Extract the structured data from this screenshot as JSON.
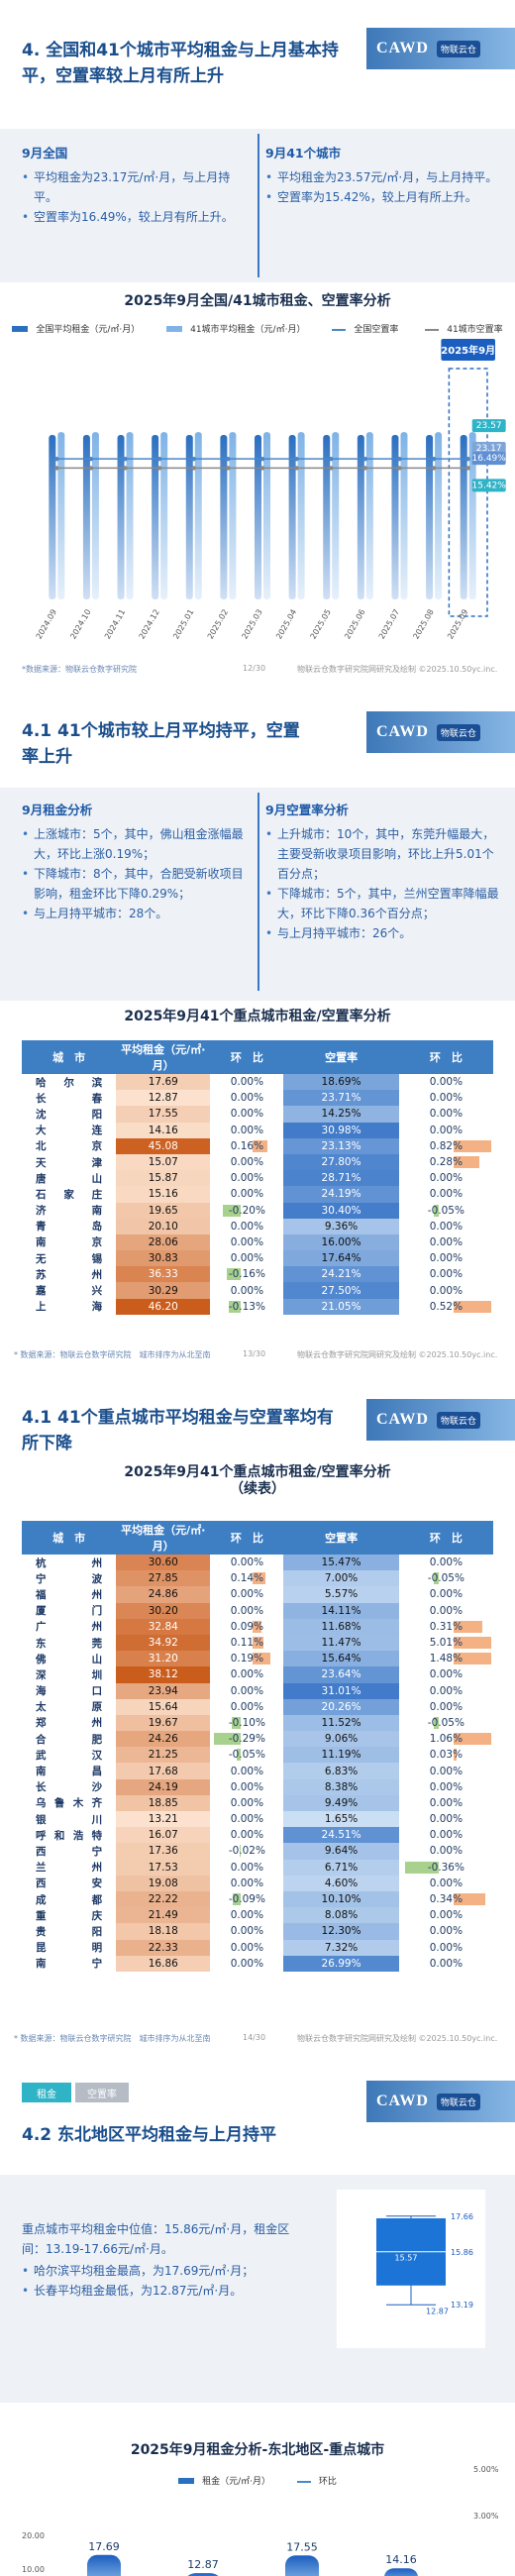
{
  "logo": {
    "text": "CAWD",
    "tag": "物联云仓"
  },
  "s1": {
    "title_l1": "4. 全国和41个城市平均租金与上月基本持",
    "title_l2": "平，空置率较上月有所上升",
    "left": {
      "h": "9月全国",
      "b1": "平均租金为23.17元/㎡·月，与上月持平。",
      "b2": "空置率为16.49%，较上月有所上升。"
    },
    "right": {
      "h": "9月41个城市",
      "b1": "平均租金为23.57元/㎡·月，与上月持平。",
      "b2": "空置率为15.42%，较上月有所上升。"
    },
    "chart_title": "2025年9月全国/41城市租金、空置率分析",
    "legend": [
      "全国平均租金（元/㎡·月）",
      "41城市平均租金（元/㎡·月）",
      "全国空置率",
      "41城市空置率"
    ],
    "callout": "2025年9月",
    "source": "*数据来源：物联云仓数字研究院",
    "page": "12/30",
    "copyright": "物联云仓数字研究院网研究及绘制 ©2025.10.50yc.inc."
  },
  "chart_data": [
    {
      "type": "bar",
      "title": "2025年9月全国/41城市租金、空置率分析",
      "categories": [
        "2024.09",
        "2024.10",
        "2024.11",
        "2024.12",
        "2025.01",
        "2025.02",
        "2025.03",
        "2025.04",
        "2025.05",
        "2025.06",
        "2025.07",
        "2025.08",
        "2025.09"
      ],
      "series": [
        {
          "name": "全国平均租金（元/㎡·月）",
          "values": [
            23.17,
            23.17,
            23.17,
            23.17,
            23.17,
            23.17,
            23.17,
            23.17,
            23.17,
            23.17,
            23.17,
            23.17,
            23.17
          ]
        },
        {
          "name": "41城市平均租金（元/㎡·月）",
          "values": [
            23.57,
            23.57,
            23.57,
            23.57,
            23.57,
            23.57,
            23.57,
            23.57,
            23.57,
            23.57,
            23.57,
            23.57,
            23.57
          ]
        },
        {
          "name": "全国空置率",
          "values": [
            16.49,
            16.49,
            16.49,
            16.49,
            16.49,
            16.49,
            16.49,
            16.49,
            16.49,
            16.49,
            16.49,
            16.49,
            16.49
          ]
        },
        {
          "name": "41城市空置率",
          "values": [
            15.42,
            15.42,
            15.42,
            15.42,
            15.42,
            15.42,
            15.42,
            15.42,
            15.42,
            15.42,
            15.42,
            15.42,
            15.42
          ]
        }
      ],
      "labels_last": [
        "23.57",
        "23.17",
        "16.49%",
        "15.42%"
      ]
    },
    {
      "type": "table",
      "title": "2025年9月41个重点城市租金/空置率分析",
      "columns": [
        "城　市",
        "平均租金（元/㎡·月）",
        "环　比",
        "空置率",
        "环　比"
      ],
      "rows": [
        [
          "哈尔滨",
          17.69,
          "0.00%",
          "18.69%",
          "0.00%"
        ],
        [
          "长春",
          12.87,
          "0.00%",
          "23.71%",
          "0.00%"
        ],
        [
          "沈阳",
          17.55,
          "0.00%",
          "14.25%",
          "0.00%"
        ],
        [
          "大连",
          14.16,
          "0.00%",
          "30.98%",
          "0.00%"
        ],
        [
          "北京",
          45.08,
          "0.16%",
          "23.13%",
          "0.82%"
        ],
        [
          "天津",
          15.07,
          "0.00%",
          "27.80%",
          "0.28%"
        ],
        [
          "唐山",
          15.87,
          "0.00%",
          "28.71%",
          "0.00%"
        ],
        [
          "石家庄",
          15.16,
          "0.00%",
          "24.19%",
          "0.00%"
        ],
        [
          "济南",
          19.65,
          "-0.20%",
          "30.40%",
          "-0.05%"
        ],
        [
          "青岛",
          20.1,
          "0.00%",
          "9.36%",
          "0.00%"
        ],
        [
          "南京",
          28.06,
          "0.00%",
          "16.00%",
          "0.00%"
        ],
        [
          "无锡",
          30.83,
          "0.00%",
          "17.64%",
          "0.00%"
        ],
        [
          "苏州",
          36.33,
          "-0.16%",
          "24.21%",
          "0.00%"
        ],
        [
          "嘉兴",
          30.29,
          "0.00%",
          "27.50%",
          "0.00%"
        ],
        [
          "上海",
          46.2,
          "-0.13%",
          "21.05%",
          "0.52%"
        ]
      ]
    },
    {
      "type": "table",
      "title": "2025年9月41个重点城市租金/空置率分析（续表）",
      "columns": [
        "城　市",
        "平均租金（元/㎡·月）",
        "环　比",
        "空置率",
        "环　比"
      ],
      "rows": [
        [
          "杭州",
          30.6,
          "0.00%",
          "15.47%",
          "0.00%"
        ],
        [
          "宁波",
          27.85,
          "0.14%",
          "7.00%",
          "-0.05%"
        ],
        [
          "福州",
          24.86,
          "0.00%",
          "5.57%",
          "0.00%"
        ],
        [
          "厦门",
          30.2,
          "0.00%",
          "14.11%",
          "0.00%"
        ],
        [
          "广州",
          32.84,
          "0.09%",
          "11.68%",
          "0.31%"
        ],
        [
          "东莞",
          34.92,
          "0.11%",
          "11.47%",
          "5.01%"
        ],
        [
          "佛山",
          31.2,
          "0.19%",
          "15.64%",
          "1.48%"
        ],
        [
          "深圳",
          38.12,
          "0.00%",
          "23.64%",
          "0.00%"
        ],
        [
          "海口",
          23.94,
          "0.00%",
          "31.01%",
          "0.00%"
        ],
        [
          "太原",
          15.64,
          "0.00%",
          "20.26%",
          "0.00%"
        ],
        [
          "郑州",
          19.67,
          "-0.10%",
          "11.52%",
          "-0.05%"
        ],
        [
          "合肥",
          24.26,
          "-0.29%",
          "9.06%",
          "1.06%"
        ],
        [
          "武汉",
          21.25,
          "-0.05%",
          "11.19%",
          "0.03%"
        ],
        [
          "南昌",
          17.68,
          "0.00%",
          "6.83%",
          "0.00%"
        ],
        [
          "长沙",
          24.19,
          "0.00%",
          "8.38%",
          "0.00%"
        ],
        [
          "乌鲁木齐",
          18.85,
          "0.00%",
          "9.49%",
          "0.00%"
        ],
        [
          "银川",
          13.21,
          "0.00%",
          "1.65%",
          "0.00%"
        ],
        [
          "呼和浩特",
          16.07,
          "0.00%",
          "24.51%",
          "0.00%"
        ],
        [
          "西宁",
          17.36,
          "-0.02%",
          "9.64%",
          "0.00%"
        ],
        [
          "兰州",
          17.53,
          "0.00%",
          "6.71%",
          "-0.36%"
        ],
        [
          "西安",
          19.08,
          "0.00%",
          "4.60%",
          "0.00%"
        ],
        [
          "成都",
          22.22,
          "-0.09%",
          "10.10%",
          "0.34%"
        ],
        [
          "重庆",
          21.49,
          "0.00%",
          "8.08%",
          "0.00%"
        ],
        [
          "贵阳",
          18.18,
          "0.00%",
          "12.30%",
          "0.00%"
        ],
        [
          "昆明",
          22.33,
          "0.00%",
          "7.32%",
          "0.00%"
        ],
        [
          "南宁",
          16.86,
          "0.00%",
          "26.99%",
          "0.00%"
        ]
      ]
    },
    {
      "type": "bar",
      "title": "2025年9月租金分析-东北地区-重点城市",
      "categories": [
        "哈尔滨",
        "长春",
        "沈阳",
        "大连"
      ],
      "series": [
        {
          "name": "租金（元/㎡·月）",
          "values": [
            17.69,
            12.87,
            17.55,
            14.16
          ]
        },
        {
          "name": "环比",
          "values": [
            0,
            0,
            0,
            0
          ]
        }
      ],
      "y_ticks_left": [
        "20.00",
        "10.00"
      ],
      "y_ticks_right": [
        "5.00%",
        "3.00%"
      ]
    }
  ],
  "s2": {
    "title_l1": "4.1 41个城市较上月平均持平，空置",
    "title_l2": "率上升",
    "left": {
      "h": "9月租金分析",
      "b1": "上涨城市：5个，其中，佛山租金涨幅最大，环比上涨0.19%；",
      "b2": "下降城市：8个，其中，合肥受新收项目影响，租金环比下降0.29%；",
      "b3": "与上月持平城市：28个。"
    },
    "right": {
      "h": "9月空置率分析",
      "b1": "上升城市：10个，其中，东莞升幅最大，主要受新收录项目影响，环比上升5.01个百分点；",
      "b2": "下降城市：5个，其中，兰州空置率降幅最大，环比下降0.36个百分点；",
      "b3": "与上月持平城市：26个。"
    },
    "chart_title": "2025年9月41个重点城市租金/空置率分析",
    "source": "* 数据来源：物联云仓数字研究院　城市排序为从北至南",
    "page": "13/30",
    "copyright": "物联云仓数字研究院网研究及绘制 ©2025.10.50yc.inc."
  },
  "s3": {
    "title_l1": "4.1 41个重点城市平均租金与空置率均有",
    "title_l2": "所下降",
    "chart_title_l1": "2025年9月41个重点城市租金/空置率分析",
    "chart_title_l2": "（续表）",
    "source": "* 数据来源：物联云仓数字研究院　城市排序为从北至南",
    "page": "14/30",
    "copyright": "物联云仓数字研究院网研究及绘制 ©2025.10.50yc.inc."
  },
  "s4": {
    "tab1": "租金",
    "tab2": "空置率",
    "title": "4.2 东北地区平均租金与上月持平",
    "b0": "重点城市平均租金中位值：15.86元/㎡·月，租金区间：13.19-17.66元/㎡·月。",
    "b1": "哈尔滨平均租金最高，为17.69元/㎡·月；",
    "b2": "长春平均租金最低，为12.87元/㎡·月。",
    "box": {
      "v1": "17.66",
      "v2": "15.86",
      "v3": "15.57",
      "v4": "13.19",
      "v5": "12.87"
    },
    "chart_title": "2025年9月租金分析-东北地区-重点城市",
    "legend": [
      "租金（元/㎡·月）",
      "环比"
    ]
  }
}
